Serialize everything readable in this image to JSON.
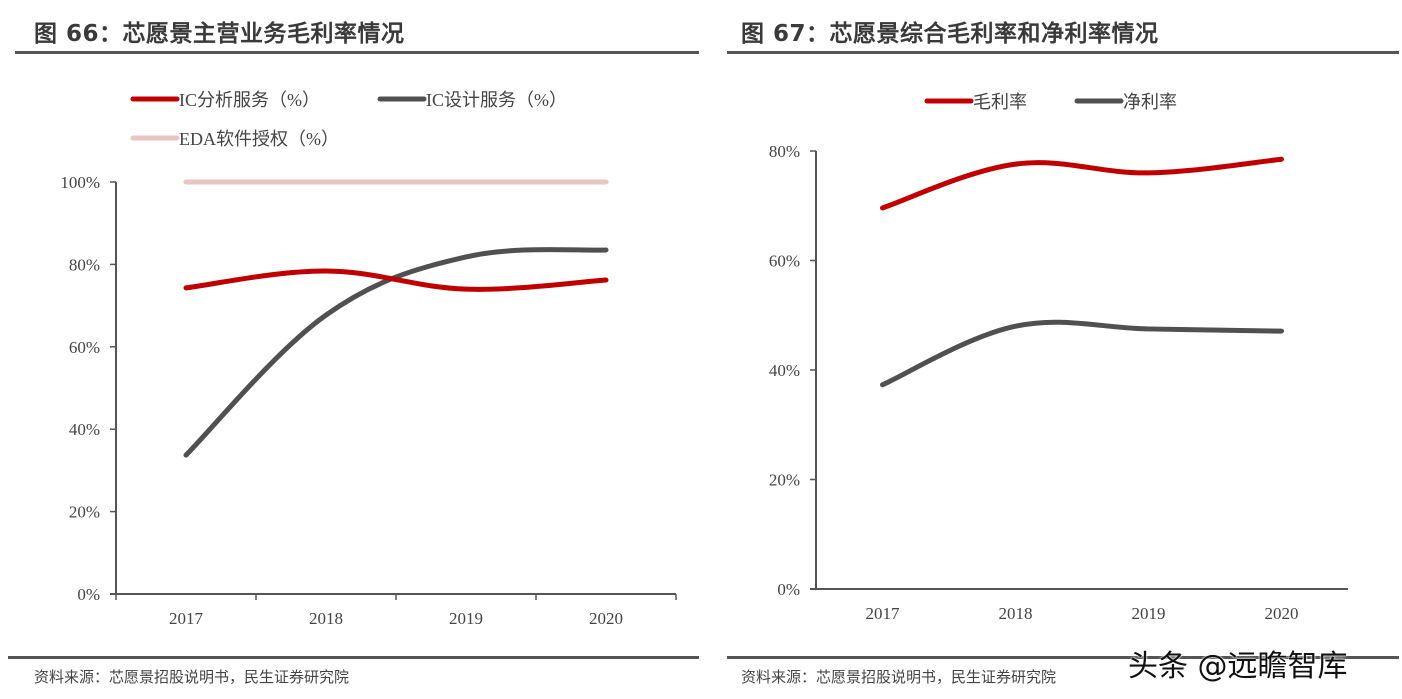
{
  "watermark": "头条 @远瞻智库",
  "chart_data": [
    {
      "type": "line",
      "figure_label": "图 66：芯愿景主营业务毛利率情况",
      "title": "芯愿景主营业务毛利率情况",
      "categories": [
        "2017",
        "2018",
        "2019",
        "2020"
      ],
      "series": [
        {
          "name": "IC分析服务（%）",
          "color": "#C00000",
          "values": [
            74.3,
            78.4,
            74.0,
            76.2
          ]
        },
        {
          "name": "IC设计服务（%）",
          "color": "#505050",
          "values": [
            33.7,
            67.7,
            81.8,
            83.5
          ]
        },
        {
          "name": "EDA软件授权（%）",
          "color": "#E8C4C4",
          "values": [
            100,
            100,
            100,
            100
          ]
        }
      ],
      "yticks": [
        "0%",
        "20%",
        "40%",
        "60%",
        "80%",
        "100%"
      ],
      "ylim": [
        0,
        100
      ],
      "xlabel": "",
      "ylabel": "",
      "grid": false,
      "legend_position": "top",
      "source": "资料来源：芯愿景招股说明书，民生证券研究院"
    },
    {
      "type": "line",
      "figure_label": "图 67：芯愿景综合毛利率和净利率情况",
      "title": "芯愿景综合毛利率和净利率情况",
      "categories": [
        "2017",
        "2018",
        "2019",
        "2020"
      ],
      "series": [
        {
          "name": "毛利率",
          "color": "#C00000",
          "values": [
            69.6,
            77.6,
            76.0,
            78.5
          ]
        },
        {
          "name": "净利率",
          "color": "#505050",
          "values": [
            37.3,
            48.0,
            47.5,
            47.1
          ]
        }
      ],
      "yticks": [
        "0%",
        "20%",
        "40%",
        "60%",
        "80%"
      ],
      "ylim": [
        0,
        80
      ],
      "xlabel": "",
      "ylabel": "",
      "grid": false,
      "legend_position": "top",
      "source": "资料来源：芯愿景招股说明书，民生证券研究院"
    }
  ]
}
